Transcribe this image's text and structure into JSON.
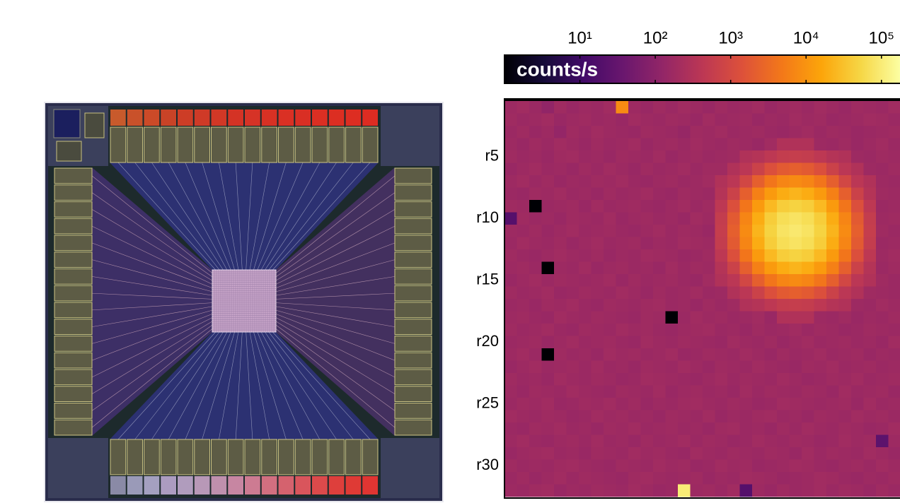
{
  "chart_data": {
    "type": "heatmap",
    "colormap": "inferno",
    "log_scale": true,
    "clim": [
      1,
      180000
    ],
    "colorbar_label": "counts/s",
    "colorbar_ticks": [
      {
        "value": 10,
        "label": "10¹"
      },
      {
        "value": 100,
        "label": "10²"
      },
      {
        "value": 1000,
        "label": "10³"
      },
      {
        "value": 10000,
        "label": "10⁴"
      },
      {
        "value": 100000,
        "label": "10⁵"
      }
    ],
    "row_labels": [
      null,
      null,
      null,
      null,
      "r5",
      null,
      null,
      null,
      null,
      "r10",
      null,
      null,
      null,
      null,
      "r15",
      null,
      null,
      null,
      null,
      "r20",
      null,
      null,
      null,
      null,
      "r25",
      null,
      null,
      null,
      null,
      "r30",
      null,
      null
    ],
    "values": [
      [
        170,
        190,
        160,
        120,
        180,
        150,
        170,
        160,
        190,
        8000,
        170,
        150,
        180,
        160,
        190,
        170,
        150,
        180,
        160,
        170,
        190,
        150,
        170,
        180,
        160,
        190,
        170,
        150,
        180,
        170,
        160,
        190
      ],
      [
        180,
        160,
        170,
        190,
        150,
        170,
        180,
        160,
        170,
        150,
        190,
        170,
        160,
        180,
        170,
        150,
        190,
        160,
        170,
        180,
        150,
        170,
        160,
        190,
        170,
        180,
        150,
        160,
        170,
        190,
        180,
        160
      ],
      [
        160,
        180,
        150,
        170,
        130,
        180,
        160,
        190,
        170,
        160,
        150,
        180,
        170,
        160,
        140,
        180,
        170,
        190,
        160,
        170,
        180,
        160,
        150,
        170,
        190,
        160,
        180,
        170,
        150,
        160,
        170,
        180
      ],
      [
        170,
        150,
        180,
        160,
        190,
        170,
        150,
        180,
        160,
        170,
        190,
        150,
        170,
        180,
        160,
        190,
        170,
        160,
        180,
        170,
        150,
        190,
        300,
        300,
        300,
        170,
        160,
        180,
        150,
        170,
        190,
        160
      ],
      [
        180,
        160,
        170,
        150,
        180,
        190,
        160,
        170,
        150,
        180,
        170,
        160,
        190,
        150,
        170,
        180,
        160,
        170,
        180,
        300,
        340,
        440,
        550,
        600,
        550,
        440,
        340,
        300,
        170,
        160,
        180,
        170
      ],
      [
        150,
        170,
        190,
        160,
        170,
        150,
        180,
        160,
        190,
        170,
        150,
        180,
        160,
        170,
        190,
        160,
        180,
        180,
        300,
        410,
        720,
        1300,
        1900,
        2200,
        1900,
        1300,
        720,
        410,
        300,
        170,
        160,
        180
      ],
      [
        170,
        190,
        160,
        180,
        150,
        170,
        160,
        180,
        170,
        190,
        160,
        150,
        170,
        180,
        160,
        170,
        190,
        300,
        410,
        900,
        2200,
        4400,
        6800,
        7900,
        6800,
        4400,
        2200,
        900,
        410,
        300,
        170,
        160
      ],
      [
        160,
        150,
        180,
        170,
        190,
        160,
        170,
        150,
        180,
        160,
        170,
        190,
        160,
        150,
        180,
        170,
        160,
        340,
        720,
        2200,
        5900,
        12000,
        19000,
        23000,
        19000,
        12000,
        5900,
        2200,
        720,
        340,
        180,
        170
      ],
      [
        180,
        170,
        1,
        160,
        170,
        180,
        150,
        190,
        160,
        170,
        180,
        160,
        150,
        170,
        190,
        160,
        180,
        440,
        1300,
        4400,
        12000,
        26000,
        42000,
        49000,
        42000,
        26000,
        12000,
        4400,
        1300,
        440,
        160,
        170
      ],
      [
        20,
        180,
        160,
        170,
        150,
        180,
        170,
        160,
        190,
        150,
        170,
        180,
        160,
        170,
        150,
        190,
        170,
        550,
        1900,
        6800,
        19000,
        42000,
        66000,
        77000,
        66000,
        42000,
        19000,
        6800,
        1900,
        550,
        170,
        180
      ],
      [
        170,
        160,
        180,
        150,
        170,
        190,
        160,
        170,
        180,
        160,
        150,
        170,
        190,
        160,
        180,
        170,
        150,
        600,
        2200,
        7900,
        23000,
        49000,
        77000,
        90000,
        77000,
        49000,
        23000,
        7900,
        2200,
        600,
        180,
        160
      ],
      [
        160,
        190,
        170,
        160,
        180,
        150,
        170,
        190,
        160,
        170,
        180,
        150,
        170,
        160,
        190,
        180,
        170,
        550,
        1900,
        6800,
        19000,
        42000,
        66000,
        77000,
        66000,
        42000,
        19000,
        6800,
        1900,
        550,
        160,
        170
      ],
      [
        180,
        160,
        150,
        170,
        190,
        170,
        160,
        180,
        150,
        170,
        160,
        190,
        180,
        170,
        150,
        160,
        180,
        440,
        1300,
        4400,
        12000,
        26000,
        42000,
        49000,
        42000,
        26000,
        12000,
        4400,
        1300,
        440,
        170,
        190
      ],
      [
        170,
        180,
        160,
        1,
        170,
        160,
        190,
        150,
        170,
        180,
        160,
        170,
        150,
        190,
        160,
        180,
        170,
        340,
        720,
        2200,
        5900,
        12000,
        19000,
        23000,
        19000,
        12000,
        5900,
        2200,
        720,
        340,
        160,
        180
      ],
      [
        150,
        170,
        190,
        160,
        180,
        170,
        160,
        170,
        190,
        150,
        180,
        160,
        170,
        180,
        160,
        150,
        190,
        300,
        410,
        900,
        2200,
        4400,
        6800,
        7900,
        6800,
        4400,
        2200,
        900,
        410,
        300,
        180,
        160
      ],
      [
        180,
        160,
        170,
        190,
        150,
        160,
        180,
        170,
        160,
        190,
        170,
        150,
        180,
        160,
        170,
        190,
        160,
        170,
        300,
        410,
        720,
        1300,
        1900,
        2200,
        1900,
        1300,
        720,
        410,
        300,
        180,
        170,
        160
      ],
      [
        160,
        170,
        150,
        180,
        170,
        190,
        160,
        150,
        180,
        170,
        160,
        180,
        190,
        160,
        170,
        150,
        180,
        160,
        180,
        300,
        340,
        440,
        550,
        600,
        550,
        440,
        340,
        300,
        170,
        160,
        190,
        170
      ],
      [
        170,
        180,
        160,
        150,
        190,
        170,
        160,
        180,
        170,
        160,
        150,
        180,
        170,
        1,
        160,
        190,
        170,
        180,
        160,
        170,
        190,
        150,
        300,
        300,
        300,
        170,
        160,
        180,
        150,
        170,
        160,
        180
      ],
      [
        180,
        160,
        170,
        190,
        160,
        150,
        180,
        170,
        160,
        190,
        170,
        180,
        160,
        150,
        170,
        180,
        190,
        160,
        170,
        150,
        180,
        160,
        170,
        190,
        160,
        180,
        170,
        150,
        160,
        180,
        170,
        160
      ],
      [
        160,
        170,
        180,
        150,
        170,
        190,
        160,
        170,
        180,
        160,
        150,
        190,
        170,
        160,
        180,
        170,
        160,
        150,
        190,
        170,
        160,
        180,
        150,
        170,
        190,
        160,
        170,
        180,
        160,
        170,
        150,
        190
      ],
      [
        170,
        190,
        160,
        1,
        180,
        160,
        170,
        150,
        190,
        170,
        180,
        160,
        170,
        190,
        150,
        160,
        180,
        170,
        160,
        190,
        170,
        150,
        180,
        160,
        170,
        190,
        160,
        170,
        180,
        150,
        170,
        160
      ],
      [
        150,
        170,
        190,
        160,
        170,
        180,
        160,
        190,
        160,
        170,
        150,
        180,
        170,
        160,
        190,
        170,
        150,
        180,
        170,
        160,
        190,
        170,
        160,
        150,
        180,
        170,
        190,
        160,
        170,
        180,
        160,
        170
      ],
      [
        180,
        160,
        170,
        150,
        190,
        170,
        160,
        180,
        170,
        150,
        160,
        190,
        180,
        170,
        160,
        150,
        170,
        190,
        160,
        180,
        170,
        160,
        190,
        170,
        150,
        160,
        180,
        170,
        190,
        160,
        170,
        180
      ],
      [
        170,
        150,
        180,
        170,
        160,
        190,
        170,
        160,
        150,
        180,
        170,
        160,
        190,
        150,
        170,
        180,
        160,
        170,
        150,
        190,
        160,
        180,
        170,
        160,
        180,
        170,
        150,
        190,
        160,
        170,
        180,
        150
      ],
      [
        160,
        180,
        170,
        190,
        150,
        160,
        180,
        170,
        190,
        160,
        180,
        150,
        170,
        160,
        180,
        190,
        170,
        160,
        180,
        170,
        150,
        160,
        190,
        180,
        170,
        160,
        170,
        180,
        150,
        190,
        160,
        170
      ],
      [
        190,
        170,
        160,
        180,
        170,
        150,
        160,
        190,
        170,
        180,
        160,
        170,
        150,
        180,
        170,
        160,
        190,
        150,
        170,
        160,
        180,
        190,
        160,
        170,
        150,
        180,
        170,
        160,
        190,
        170,
        180,
        160
      ],
      [
        160,
        150,
        180,
        170,
        190,
        160,
        170,
        150,
        180,
        170,
        190,
        160,
        170,
        180,
        160,
        170,
        150,
        180,
        190,
        160,
        170,
        150,
        180,
        160,
        190,
        170,
        160,
        180,
        170,
        150,
        160,
        190
      ],
      [
        170,
        190,
        160,
        150,
        170,
        180,
        160,
        190,
        160,
        170,
        150,
        180,
        160,
        170,
        190,
        160,
        180,
        170,
        150,
        160,
        190,
        170,
        160,
        180,
        170,
        150,
        160,
        190,
        170,
        180,
        25,
        170
      ],
      [
        150,
        170,
        180,
        190,
        160,
        170,
        150,
        180,
        170,
        160,
        190,
        170,
        180,
        160,
        150,
        190,
        170,
        160,
        180,
        170,
        160,
        180,
        170,
        150,
        190,
        160,
        180,
        170,
        160,
        190,
        170,
        150
      ],
      [
        180,
        160,
        170,
        160,
        180,
        190,
        170,
        160,
        150,
        180,
        170,
        160,
        190,
        170,
        180,
        150,
        160,
        190,
        170,
        180,
        150,
        160,
        170,
        190,
        180,
        160,
        150,
        170,
        180,
        160,
        190,
        170
      ],
      [
        160,
        180,
        150,
        170,
        190,
        160,
        180,
        170,
        160,
        150,
        180,
        190,
        170,
        160,
        170,
        180,
        150,
        170,
        160,
        190,
        180,
        170,
        150,
        160,
        170,
        190,
        180,
        160,
        150,
        170,
        160,
        180
      ],
      [
        170,
        160,
        180,
        190,
        150,
        170,
        160,
        180,
        170,
        160,
        190,
        170,
        150,
        160,
        100000,
        170,
        180,
        160,
        190,
        20,
        170,
        150,
        180,
        160,
        170,
        190,
        160,
        180,
        170,
        150,
        180,
        160
      ]
    ]
  }
}
